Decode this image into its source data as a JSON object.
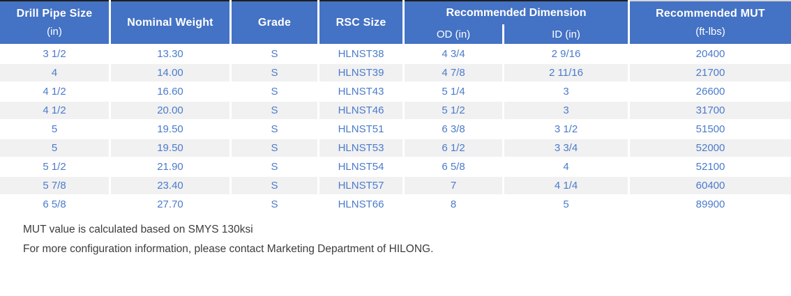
{
  "colors": {
    "page_bg": "#FFFFFF",
    "header_bg": "#4472C4",
    "header_text": "#FFFFFF",
    "body_text": "#4B7BCA",
    "stripe_bg": "#F1F1F2",
    "note_text": "#3C3C3C",
    "top_border_dark": "#1E1E1E",
    "top_border_light": "#D6D6D6"
  },
  "table": {
    "header": {
      "drill_pipe_size": {
        "label": "Drill Pipe Size",
        "unit": "(in)"
      },
      "nominal_weight": {
        "label": "Nominal Weight"
      },
      "grade": {
        "label": "Grade"
      },
      "rsc_size": {
        "label": "RSC Size"
      },
      "recommended_dimension": {
        "label": "Recommended Dimension",
        "od": "OD (in)",
        "id": "ID (in)"
      },
      "recommended_mut": {
        "label": "Recommended MUT",
        "unit": "(ft-lbs)"
      }
    },
    "rows": [
      [
        "3 1/2",
        "13.30",
        "S",
        "HLNST38",
        "4 3/4",
        "2 9/16",
        "20400"
      ],
      [
        "4",
        "14.00",
        "S",
        "HLNST39",
        "4 7/8",
        "2 11/16",
        "21700"
      ],
      [
        "4 1/2",
        "16.60",
        "S",
        "HLNST43",
        "5 1/4",
        "3",
        "26600"
      ],
      [
        "4 1/2",
        "20.00",
        "S",
        "HLNST46",
        "5 1/2",
        "3",
        "31700"
      ],
      [
        "5",
        "19.50",
        "S",
        "HLNST51",
        "6 3/8",
        "3 1/2",
        "51500"
      ],
      [
        "5",
        "19.50",
        "S",
        "HLNST53",
        "6 1/2",
        "3 3/4",
        "52000"
      ],
      [
        "5 1/2",
        "21.90",
        "S",
        "HLNST54",
        "6 5/8",
        "4",
        "52100"
      ],
      [
        "5 7/8",
        "23.40",
        "S",
        "HLNST57",
        "7",
        "4 1/4",
        "60400"
      ],
      [
        "6 5/8",
        "27.70",
        "S",
        "HLNST66",
        "8",
        "5",
        "89900"
      ]
    ]
  },
  "notes": {
    "line1": "MUT value is calculated based on SMYS 130ksi",
    "line2": "For more configuration information, please contact Marketing Department of HILONG."
  }
}
